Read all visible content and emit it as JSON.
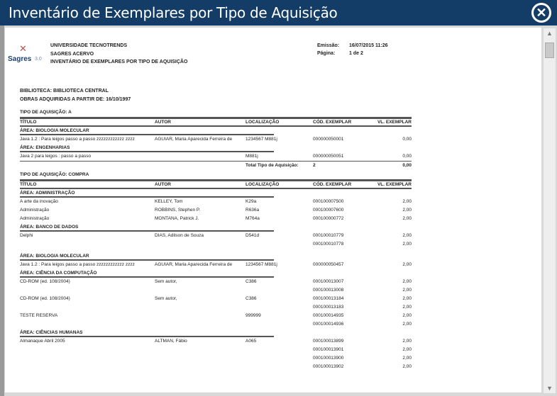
{
  "window": {
    "title": "Inventário de Exemplares por Tipo de Aquisição",
    "close_icon": "close-circle-icon"
  },
  "header": {
    "logo_text": "Sagres",
    "logo_version": "3.0",
    "institution": "UNIVERSIDADE TECNOTRENDS",
    "system": "SAGRES ACERVO",
    "report_title": "INVENTÁRIO DE EXEMPLARES POR TIPO DE AQUISIÇÃO",
    "emissao_label": "Emissão:",
    "emissao": "16/07/2015 11:26",
    "pagina_label": "Página:",
    "pagina": "1 de 2",
    "biblioteca": "BIBLIOTECA: BIBLIOTECA CENTRAL",
    "obras": "OBRAS ADQUIRIDAS A PARTIR DE:  16/10/1997"
  },
  "columns": [
    "TÍTULO",
    "AUTOR",
    "LOCALIZAÇÃO",
    "CÓD. EXEMPLAR",
    "VL. EXEMPLAR"
  ],
  "items": [
    {
      "type": "tipo",
      "text": "TIPO DE AQUISIÇÃO: A"
    },
    {
      "type": "header"
    },
    {
      "type": "area",
      "text": "ÁREA: BIOLOGIA MOLECULAR"
    },
    {
      "type": "row",
      "cells": [
        "Java 1.2 : Para leigos passo a passo zzzzzzzzzzzz zzzz",
        "AGUIAR, Maria Aparecida Ferreira de",
        "1234567 M881j",
        "000000050001",
        "0,00"
      ]
    },
    {
      "type": "area",
      "text": "ÁREA: ENGENHARIAS"
    },
    {
      "type": "row",
      "cells": [
        "Java 2 para leigos : passo a passo",
        "",
        "M881j",
        "000000050051",
        "0,00"
      ]
    },
    {
      "type": "total",
      "cells": [
        "",
        "",
        "Total Tipo de Aquisição:",
        "2",
        "0,00"
      ]
    },
    {
      "type": "tipo",
      "text": "TIPO DE AQUISIÇÃO: COMPRA"
    },
    {
      "type": "header"
    },
    {
      "type": "area",
      "text": "ÁREA: ADMINISTRAÇÃO"
    },
    {
      "type": "row",
      "cells": [
        "A arte da inovação",
        "KELLEY, Tom",
        "K29a",
        "000100007500",
        "2,00"
      ]
    },
    {
      "type": "row",
      "cells": [
        "Administração",
        "ROBBINS, Stephen P.",
        "R636a",
        "000100007600",
        "2,00"
      ]
    },
    {
      "type": "row",
      "cells": [
        "Administração",
        "MONTANA, Patrick J.",
        "M764a",
        "000100000772",
        "2,00"
      ]
    },
    {
      "type": "area",
      "text": "ÁREA: BANCO DE DADOS"
    },
    {
      "type": "row",
      "cells": [
        "Delphi",
        "DIAS, Adilson de Souza",
        "D541d",
        "000100010779",
        "2,00"
      ]
    },
    {
      "type": "row",
      "cells": [
        "",
        "",
        "",
        "000100010778",
        "2,00"
      ]
    },
    {
      "type": "gap"
    },
    {
      "type": "area",
      "text": "ÁREA: BIOLOGIA MOLECULAR"
    },
    {
      "type": "row",
      "cells": [
        "Java 1.2 : Para leigos passo a passo zzzzzzzzzzzz zzzz",
        "AGUIAR, Maria Aparecida Ferreira de",
        "1234567 M881j",
        "000000050457",
        "2,00"
      ]
    },
    {
      "type": "area",
      "text": "ÁREA: CIÊNCIA DA COMPUTAÇÃO"
    },
    {
      "type": "row",
      "cells": [
        "CD-ROM (ed. 108/2004)",
        "Sem autor,",
        "C386",
        "000100013007",
        "2,00"
      ]
    },
    {
      "type": "row",
      "cells": [
        "",
        "",
        "",
        "000100013008",
        "2,00"
      ]
    },
    {
      "type": "row",
      "cells": [
        "CD-ROM (ed. 108/2004)",
        "Sem autor,",
        "C386",
        "000100013184",
        "2,00"
      ]
    },
    {
      "type": "row",
      "cells": [
        "",
        "",
        "",
        "000100013183",
        "2,00"
      ]
    },
    {
      "type": "row",
      "cells": [
        "TESTE RESERVA",
        "",
        "999999",
        "000100014935",
        "2,00"
      ]
    },
    {
      "type": "row",
      "cells": [
        "",
        "",
        "",
        "000100014936",
        "2,00"
      ]
    },
    {
      "type": "area",
      "text": "ÁREA: CIÊNCIAS HUMANAS"
    },
    {
      "type": "row",
      "cells": [
        "Almanaque Abril 2005",
        "ALTMAN, Fábio",
        "A065",
        "000100013899",
        "2,00"
      ]
    },
    {
      "type": "row",
      "cells": [
        "",
        "",
        "",
        "000100013901",
        "2,00"
      ]
    },
    {
      "type": "row",
      "cells": [
        "",
        "",
        "",
        "000100013900",
        "2,00"
      ]
    },
    {
      "type": "row",
      "cells": [
        "",
        "",
        "",
        "000100013902",
        "2,00"
      ]
    }
  ]
}
